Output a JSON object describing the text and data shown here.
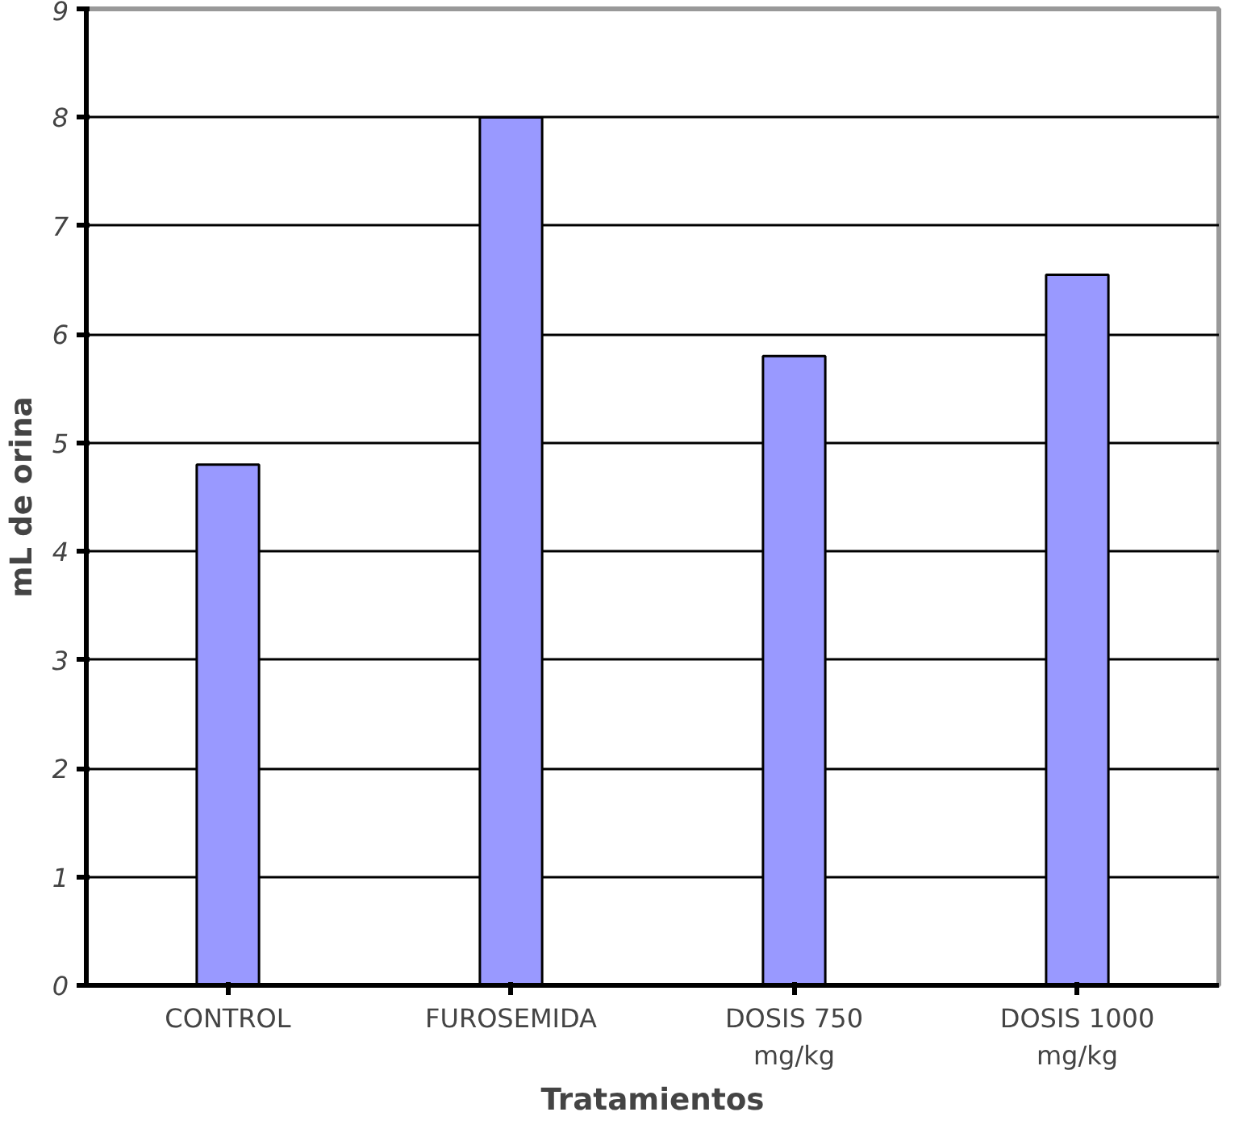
{
  "chart_data": {
    "type": "bar",
    "xlabel": "Tratamientos",
    "ylabel": "mL de orina",
    "categories": [
      "CONTROL",
      "FUROSEMIDA",
      "DOSIS 750\nmg/kg",
      "DOSIS 1000\nmg/kg"
    ],
    "values": [
      4.8,
      8.0,
      5.8,
      6.55
    ],
    "color": "#9999ff",
    "ylim": [
      0,
      9
    ],
    "yticks": [
      0,
      1,
      2,
      3,
      4,
      5,
      6,
      7,
      8,
      9
    ],
    "grid": "y"
  }
}
